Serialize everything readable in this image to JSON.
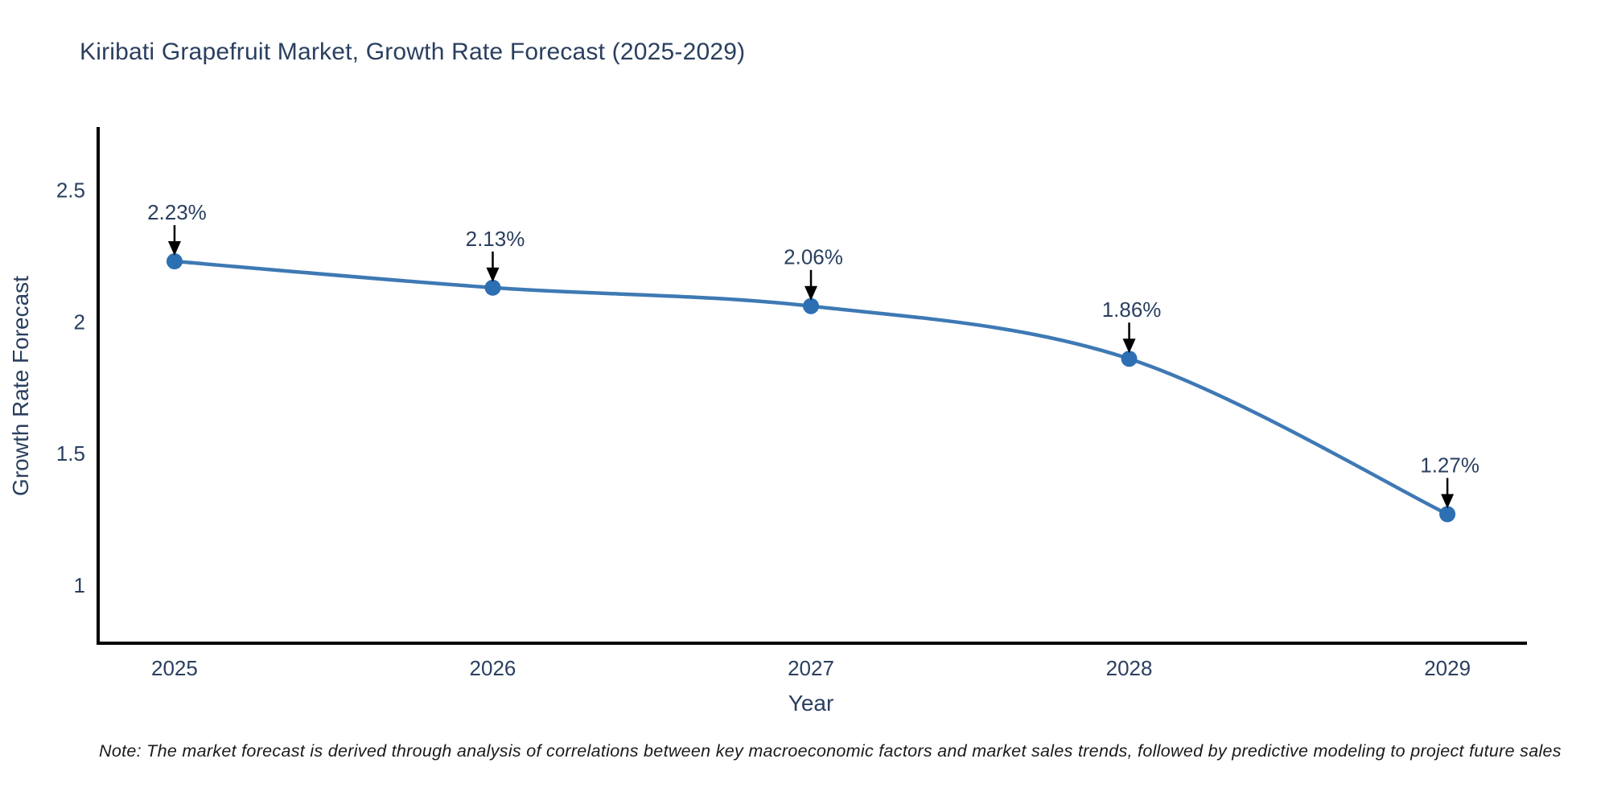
{
  "title": "Kiribati Grapefruit Market, Growth Rate Forecast (2025-2029)",
  "note": "Note: The market forecast is derived through analysis of correlations between key macroeconomic factors and market sales trends, followed by predictive modeling to project future sales",
  "colors": {
    "background": "#ffffff",
    "title_text": "#2a3f5f",
    "tick_text": "#2a3f5f",
    "axis_line": "#000000",
    "series_line": "#3e79b4",
    "marker_fill": "#2d6fb3",
    "annotation_text": "#2a3f5f",
    "arrow": "#000000",
    "note_text": "#1a1a1a"
  },
  "chart_data": {
    "type": "line",
    "title": "Kiribati Grapefruit Market, Growth Rate Forecast (2025-2029)",
    "xlabel": "Year",
    "ylabel": "Growth Rate Forecast",
    "x": [
      2025,
      2026,
      2027,
      2028,
      2029
    ],
    "values": [
      2.23,
      2.13,
      2.06,
      1.86,
      1.27
    ],
    "point_labels": [
      "2.23%",
      "2.13%",
      "2.06%",
      "1.86%",
      "1.27%"
    ],
    "xticks": [
      "2025",
      "2026",
      "2027",
      "2028",
      "2029"
    ],
    "yticks": [
      1,
      1.5,
      2,
      2.5
    ],
    "ytick_labels": [
      "1",
      "1.5",
      "2",
      "2.5"
    ],
    "xlim": [
      2024.76,
      2029.25
    ],
    "ylim": [
      0.78,
      2.74
    ],
    "grid": false,
    "legend_position": "none",
    "line_shape": "spline"
  }
}
